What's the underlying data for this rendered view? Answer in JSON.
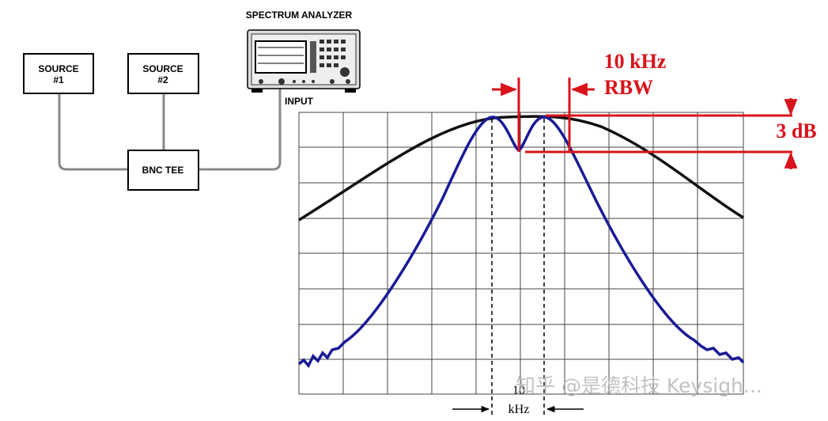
{
  "analyzer": {
    "title": "SPECTRUM ANALYZER",
    "input_label": "INPUT"
  },
  "sources": [
    {
      "line1": "SOURCE",
      "line2": "#1"
    },
    {
      "line1": "SOURCE",
      "line2": "#2"
    }
  ],
  "tee": {
    "label": "BNC TEE"
  },
  "annotations": {
    "rbw_value": "10 kHz",
    "rbw_label": "RBW",
    "amplitude": "3 dB",
    "separation_value": "10",
    "separation_unit": "kHz"
  },
  "watermark": "知乎 @是德科技 Keysigh..."
}
